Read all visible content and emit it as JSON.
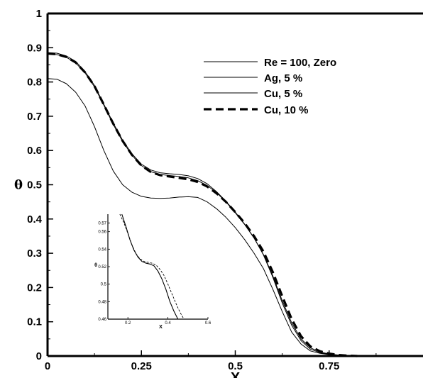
{
  "chart_data": [
    {
      "type": "line",
      "title": "",
      "xlabel": "X",
      "ylabel": "θ",
      "xlim": [
        0,
        1.0
      ],
      "ylim": [
        0,
        1.0
      ],
      "xticks": [
        {
          "value": 0,
          "label": "0"
        },
        {
          "value": 0.25,
          "label": "0.25"
        },
        {
          "value": 0.5,
          "label": "0.5"
        },
        {
          "value": 0.75,
          "label": "0.75"
        }
      ],
      "yticks": [
        {
          "value": 0,
          "label": "0"
        },
        {
          "value": 0.1,
          "label": "0.1"
        },
        {
          "value": 0.2,
          "label": "0.2"
        },
        {
          "value": 0.3,
          "label": "0.3"
        },
        {
          "value": 0.4,
          "label": "0.4"
        },
        {
          "value": 0.5,
          "label": "0.5"
        },
        {
          "value": 0.6,
          "label": "0.6"
        },
        {
          "value": 0.7,
          "label": "0.7"
        },
        {
          "value": 0.8,
          "label": "0.8"
        },
        {
          "value": 0.9,
          "label": "0.9"
        },
        {
          "value": 1,
          "label": "1"
        }
      ],
      "legend_position": "top-right",
      "series": [
        {
          "name": "Re = 100, Zero",
          "style": "solid-thin",
          "x": [
            0,
            0.025,
            0.05,
            0.075,
            0.1,
            0.125,
            0.15,
            0.175,
            0.2,
            0.225,
            0.25,
            0.275,
            0.3,
            0.325,
            0.35,
            0.375,
            0.4,
            0.425,
            0.45,
            0.475,
            0.5,
            0.525,
            0.55,
            0.575,
            0.6,
            0.625,
            0.65,
            0.675,
            0.7,
            0.725,
            0.75,
            0.775,
            0.8,
            0.825
          ],
          "values": [
            0.81,
            0.808,
            0.795,
            0.77,
            0.73,
            0.67,
            0.6,
            0.54,
            0.5,
            0.478,
            0.466,
            0.461,
            0.46,
            0.461,
            0.464,
            0.465,
            0.463,
            0.45,
            0.43,
            0.405,
            0.375,
            0.34,
            0.3,
            0.255,
            0.195,
            0.13,
            0.07,
            0.035,
            0.015,
            0.008,
            0.004,
            0.002,
            0.001,
            0.0
          ]
        },
        {
          "name": "Ag, 5 %",
          "style": "solid-thin",
          "x": [
            0,
            0.025,
            0.05,
            0.075,
            0.1,
            0.125,
            0.15,
            0.175,
            0.2,
            0.225,
            0.25,
            0.275,
            0.3,
            0.325,
            0.35,
            0.375,
            0.4,
            0.425,
            0.45,
            0.475,
            0.5,
            0.525,
            0.55,
            0.575,
            0.6,
            0.625,
            0.65,
            0.675,
            0.7,
            0.725,
            0.75,
            0.775,
            0.8,
            0.825
          ],
          "values": [
            0.886,
            0.884,
            0.876,
            0.86,
            0.83,
            0.79,
            0.735,
            0.68,
            0.63,
            0.59,
            0.56,
            0.543,
            0.535,
            0.532,
            0.53,
            0.526,
            0.518,
            0.503,
            0.48,
            0.452,
            0.42,
            0.385,
            0.345,
            0.295,
            0.23,
            0.155,
            0.09,
            0.045,
            0.02,
            0.01,
            0.005,
            0.002,
            0.001,
            0.0
          ]
        },
        {
          "name": "Cu, 5 %",
          "style": "solid-thin",
          "x": [
            0,
            0.025,
            0.05,
            0.075,
            0.1,
            0.125,
            0.15,
            0.175,
            0.2,
            0.225,
            0.25,
            0.275,
            0.3,
            0.325,
            0.35,
            0.375,
            0.4,
            0.425,
            0.45,
            0.475,
            0.5,
            0.525,
            0.55,
            0.575,
            0.6,
            0.625,
            0.65,
            0.675,
            0.7,
            0.725,
            0.75,
            0.775,
            0.8,
            0.825
          ],
          "values": [
            0.882,
            0.88,
            0.872,
            0.856,
            0.826,
            0.786,
            0.732,
            0.676,
            0.626,
            0.586,
            0.556,
            0.538,
            0.53,
            0.527,
            0.524,
            0.52,
            0.512,
            0.498,
            0.477,
            0.45,
            0.418,
            0.384,
            0.344,
            0.296,
            0.234,
            0.162,
            0.097,
            0.05,
            0.024,
            0.012,
            0.006,
            0.003,
            0.001,
            0.0
          ]
        },
        {
          "name": "Cu, 10 %",
          "style": "dashed-thick",
          "x": [
            0,
            0.025,
            0.05,
            0.075,
            0.1,
            0.125,
            0.15,
            0.175,
            0.2,
            0.225,
            0.25,
            0.275,
            0.3,
            0.325,
            0.35,
            0.375,
            0.4,
            0.425,
            0.45,
            0.475,
            0.5,
            0.525,
            0.55,
            0.575,
            0.6,
            0.625,
            0.65,
            0.675,
            0.7,
            0.725,
            0.75,
            0.775,
            0.8,
            0.825
          ],
          "values": [
            0.883,
            0.881,
            0.873,
            0.857,
            0.828,
            0.788,
            0.734,
            0.678,
            0.628,
            0.587,
            0.556,
            0.537,
            0.528,
            0.524,
            0.52,
            0.516,
            0.508,
            0.495,
            0.475,
            0.45,
            0.42,
            0.388,
            0.35,
            0.305,
            0.245,
            0.175,
            0.108,
            0.058,
            0.028,
            0.014,
            0.007,
            0.003,
            0.001,
            0.0
          ]
        }
      ]
    },
    {
      "type": "line",
      "title": "",
      "xlabel": "X",
      "ylabel": "θ",
      "xlim": [
        0.1,
        0.6
      ],
      "ylim": [
        0.46,
        0.58
      ],
      "xticks": [
        {
          "value": 0.2,
          "label": "0.2"
        },
        {
          "value": 0.4,
          "label": "0.4"
        },
        {
          "value": 0.6,
          "label": "0.6"
        }
      ],
      "yticks": [
        {
          "value": 0.46,
          "label": "0.46"
        },
        {
          "value": 0.48,
          "label": "0.48"
        },
        {
          "value": 0.5,
          "label": "0.5"
        },
        {
          "value": 0.52,
          "label": "0.52"
        },
        {
          "value": 0.54,
          "label": "0.54"
        },
        {
          "value": 0.56,
          "label": "0.56"
        },
        {
          "value": 0.57,
          "label": "0.57"
        }
      ],
      "series": [
        {
          "style": "solid",
          "x": [
            0.17,
            0.19,
            0.21,
            0.23,
            0.25,
            0.27,
            0.29,
            0.31,
            0.33,
            0.35,
            0.37,
            0.39,
            0.41,
            0.43,
            0.45
          ],
          "values": [
            0.58,
            0.566,
            0.551,
            0.539,
            0.531,
            0.526,
            0.524,
            0.523,
            0.521,
            0.515,
            0.506,
            0.494,
            0.48,
            0.469,
            0.46
          ]
        },
        {
          "style": "dashed",
          "x": [
            0.16,
            0.18,
            0.2,
            0.22,
            0.24,
            0.26,
            0.28,
            0.3,
            0.32,
            0.34,
            0.36,
            0.38,
            0.4,
            0.42,
            0.44,
            0.46,
            0.48
          ],
          "values": [
            0.58,
            0.57,
            0.558,
            0.545,
            0.535,
            0.529,
            0.526,
            0.525,
            0.524,
            0.522,
            0.517,
            0.51,
            0.5,
            0.489,
            0.478,
            0.468,
            0.46
          ]
        }
      ]
    }
  ]
}
